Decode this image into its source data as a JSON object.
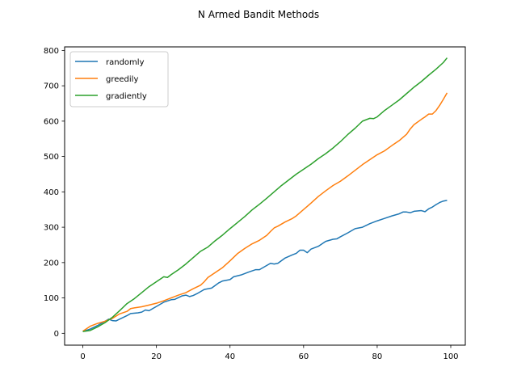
{
  "chart_data": {
    "type": "line",
    "title": "N Armed Bandit Methods",
    "xlabel": "",
    "ylabel": "",
    "xlim": [
      -4.95,
      103.95
    ],
    "ylim": [
      -33.5,
      810
    ],
    "xticks": [
      0,
      20,
      40,
      60,
      80,
      100
    ],
    "yticks": [
      0,
      100,
      200,
      300,
      400,
      500,
      600,
      700,
      800
    ],
    "grid": false,
    "legend_position": "top-left",
    "series": [
      {
        "name": "randomly",
        "color": "#1f77b4",
        "points": [
          [
            0,
            5
          ],
          [
            2,
            12
          ],
          [
            4,
            22
          ],
          [
            6,
            34
          ],
          [
            7,
            40
          ],
          [
            8,
            36
          ],
          [
            9,
            35
          ],
          [
            10,
            40
          ],
          [
            12,
            50
          ],
          [
            13,
            56
          ],
          [
            15,
            58
          ],
          [
            16,
            60
          ],
          [
            17,
            66
          ],
          [
            18,
            64
          ],
          [
            20,
            76
          ],
          [
            22,
            88
          ],
          [
            24,
            95
          ],
          [
            25,
            96
          ],
          [
            27,
            106
          ],
          [
            28,
            108
          ],
          [
            29,
            104
          ],
          [
            30,
            107
          ],
          [
            31,
            112
          ],
          [
            33,
            124
          ],
          [
            35,
            128
          ],
          [
            37,
            143
          ],
          [
            38,
            148
          ],
          [
            40,
            152
          ],
          [
            41,
            160
          ],
          [
            43,
            165
          ],
          [
            45,
            173
          ],
          [
            47,
            180
          ],
          [
            48,
            180
          ],
          [
            50,
            192
          ],
          [
            51,
            198
          ],
          [
            52,
            196
          ],
          [
            53,
            198
          ],
          [
            55,
            213
          ],
          [
            57,
            222
          ],
          [
            58,
            226
          ],
          [
            59,
            235
          ],
          [
            60,
            235
          ],
          [
            61,
            228
          ],
          [
            62,
            238
          ],
          [
            64,
            246
          ],
          [
            66,
            260
          ],
          [
            68,
            266
          ],
          [
            69,
            267
          ],
          [
            70,
            273
          ],
          [
            72,
            284
          ],
          [
            74,
            296
          ],
          [
            76,
            300
          ],
          [
            78,
            310
          ],
          [
            80,
            318
          ],
          [
            82,
            325
          ],
          [
            84,
            332
          ],
          [
            86,
            338
          ],
          [
            87,
            343
          ],
          [
            88,
            343
          ],
          [
            89,
            341
          ],
          [
            90,
            345
          ],
          [
            92,
            347
          ],
          [
            93,
            344
          ],
          [
            94,
            352
          ],
          [
            95,
            357
          ],
          [
            96,
            364
          ],
          [
            97,
            370
          ],
          [
            98,
            374
          ],
          [
            99,
            376
          ]
        ]
      },
      {
        "name": "greedily",
        "color": "#ff7f0e",
        "points": [
          [
            0,
            6
          ],
          [
            2,
            20
          ],
          [
            4,
            28
          ],
          [
            6,
            34
          ],
          [
            8,
            42
          ],
          [
            10,
            55
          ],
          [
            12,
            62
          ],
          [
            13,
            70
          ],
          [
            14,
            72
          ],
          [
            16,
            75
          ],
          [
            18,
            80
          ],
          [
            20,
            85
          ],
          [
            22,
            92
          ],
          [
            24,
            100
          ],
          [
            25,
            104
          ],
          [
            26,
            108
          ],
          [
            28,
            115
          ],
          [
            30,
            126
          ],
          [
            32,
            136
          ],
          [
            33,
            146
          ],
          [
            34,
            158
          ],
          [
            36,
            172
          ],
          [
            38,
            186
          ],
          [
            40,
            205
          ],
          [
            42,
            225
          ],
          [
            44,
            240
          ],
          [
            46,
            253
          ],
          [
            48,
            263
          ],
          [
            50,
            277
          ],
          [
            51,
            288
          ],
          [
            52,
            298
          ],
          [
            53,
            303
          ],
          [
            55,
            315
          ],
          [
            57,
            325
          ],
          [
            58,
            332
          ],
          [
            60,
            350
          ],
          [
            62,
            368
          ],
          [
            64,
            387
          ],
          [
            66,
            403
          ],
          [
            68,
            418
          ],
          [
            70,
            430
          ],
          [
            72,
            445
          ],
          [
            74,
            461
          ],
          [
            76,
            477
          ],
          [
            78,
            491
          ],
          [
            80,
            505
          ],
          [
            82,
            516
          ],
          [
            84,
            531
          ],
          [
            86,
            545
          ],
          [
            88,
            563
          ],
          [
            89,
            578
          ],
          [
            90,
            590
          ],
          [
            92,
            605
          ],
          [
            93,
            612
          ],
          [
            94,
            620
          ],
          [
            95,
            620
          ],
          [
            96,
            630
          ],
          [
            97,
            645
          ],
          [
            98,
            662
          ],
          [
            99,
            680
          ]
        ]
      },
      {
        "name": "gradiently",
        "color": "#2ca02c",
        "points": [
          [
            0,
            5
          ],
          [
            2,
            8
          ],
          [
            4,
            18
          ],
          [
            6,
            30
          ],
          [
            8,
            45
          ],
          [
            10,
            64
          ],
          [
            12,
            84
          ],
          [
            14,
            98
          ],
          [
            16,
            115
          ],
          [
            18,
            132
          ],
          [
            20,
            146
          ],
          [
            22,
            160
          ],
          [
            23,
            158
          ],
          [
            24,
            166
          ],
          [
            26,
            180
          ],
          [
            28,
            196
          ],
          [
            30,
            214
          ],
          [
            32,
            232
          ],
          [
            34,
            244
          ],
          [
            36,
            262
          ],
          [
            38,
            278
          ],
          [
            40,
            296
          ],
          [
            42,
            313
          ],
          [
            44,
            330
          ],
          [
            46,
            349
          ],
          [
            48,
            365
          ],
          [
            50,
            382
          ],
          [
            52,
            400
          ],
          [
            54,
            418
          ],
          [
            56,
            434
          ],
          [
            58,
            450
          ],
          [
            60,
            464
          ],
          [
            62,
            478
          ],
          [
            64,
            494
          ],
          [
            66,
            508
          ],
          [
            68,
            524
          ],
          [
            70,
            542
          ],
          [
            72,
            562
          ],
          [
            74,
            580
          ],
          [
            76,
            600
          ],
          [
            78,
            608
          ],
          [
            79,
            607
          ],
          [
            80,
            612
          ],
          [
            82,
            630
          ],
          [
            84,
            645
          ],
          [
            86,
            660
          ],
          [
            88,
            678
          ],
          [
            90,
            696
          ],
          [
            92,
            712
          ],
          [
            94,
            730
          ],
          [
            96,
            747
          ],
          [
            98,
            766
          ],
          [
            99,
            779
          ]
        ]
      }
    ]
  }
}
